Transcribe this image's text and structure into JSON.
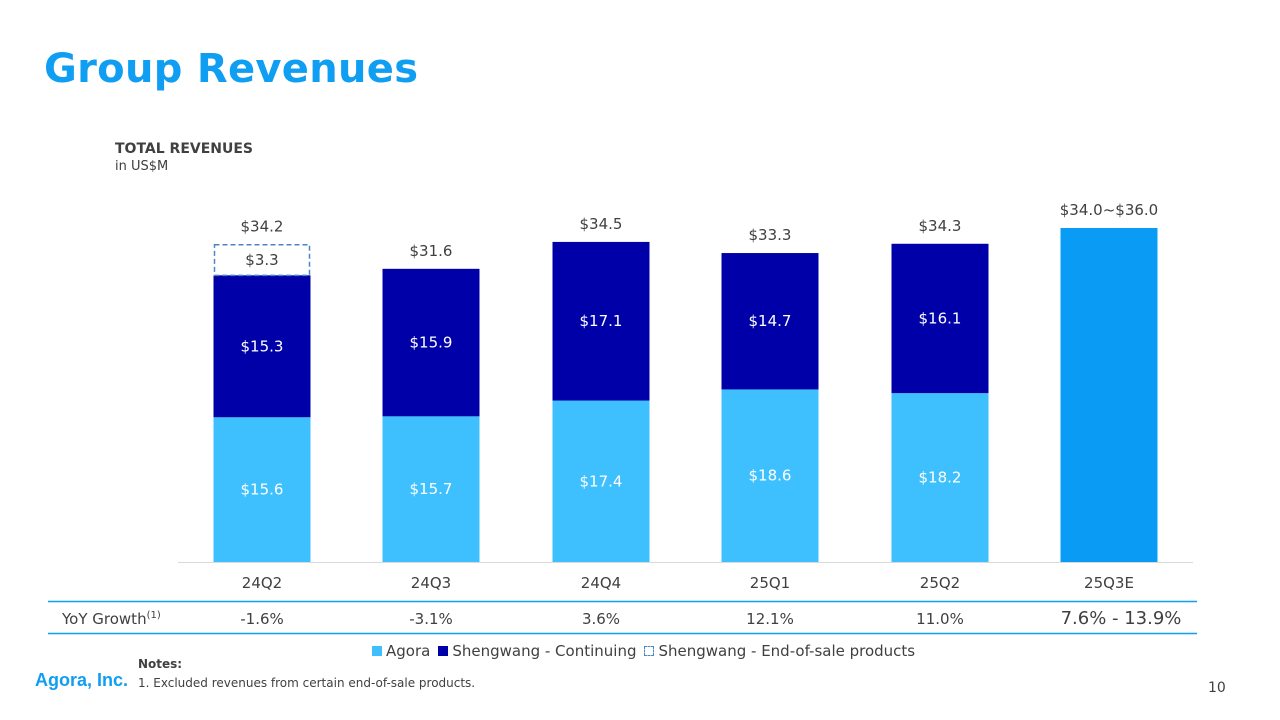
{
  "page": {
    "title": "Group Revenues",
    "company": "Agora, Inc.",
    "page_number": "10"
  },
  "colors": {
    "agora": "#3ec0ff",
    "shengwang": "#0000a8",
    "estimate": "#0a9cf5",
    "dashed": "#4a86c8",
    "title": "#0f9ef2"
  },
  "chart_data": {
    "type": "bar",
    "stacked": true,
    "title": "TOTAL REVENUES",
    "subtitle": "in US$M",
    "categories": [
      "24Q2",
      "24Q3",
      "24Q4",
      "25Q1",
      "25Q2",
      "25Q3E"
    ],
    "series": [
      {
        "name": "Agora",
        "values": [
          15.6,
          15.7,
          17.4,
          18.6,
          18.2,
          null
        ],
        "labels": [
          "$15.6",
          "$15.7",
          "$17.4",
          "$18.6",
          "$18.2",
          ""
        ]
      },
      {
        "name": "Shengwang - Continuing",
        "values": [
          15.3,
          15.9,
          17.1,
          14.7,
          16.1,
          null
        ],
        "labels": [
          "$15.3",
          "$15.9",
          "$17.1",
          "$14.7",
          "$16.1",
          ""
        ]
      },
      {
        "name": "Shengwang - End-of-sale products",
        "values": [
          3.3,
          null,
          null,
          null,
          null,
          null
        ],
        "labels": [
          "$3.3",
          "",
          "",
          "",
          "",
          ""
        ]
      }
    ],
    "estimate": {
      "category": "25Q3E",
      "low": 34.0,
      "high": 36.0,
      "label": "$34.0~$36.0"
    },
    "totals": [
      "$34.2",
      "$31.6",
      "$34.5",
      "$33.3",
      "$34.3",
      "$34.0~$36.0"
    ],
    "yoy_label": "YoY Growth",
    "yoy_superscript": "(1)",
    "yoy_growth": [
      "-1.6%",
      "-3.1%",
      "3.6%",
      "12.1%",
      "11.0%",
      "7.6% - 13.9%"
    ],
    "legend": [
      "Agora",
      "Shengwang - Continuing",
      "Shengwang - End-of-sale products"
    ],
    "ylim": [
      0,
      36
    ]
  },
  "notes": {
    "heading": "Notes:",
    "items": [
      "1. Excluded revenues from certain end-of-sale products."
    ]
  }
}
